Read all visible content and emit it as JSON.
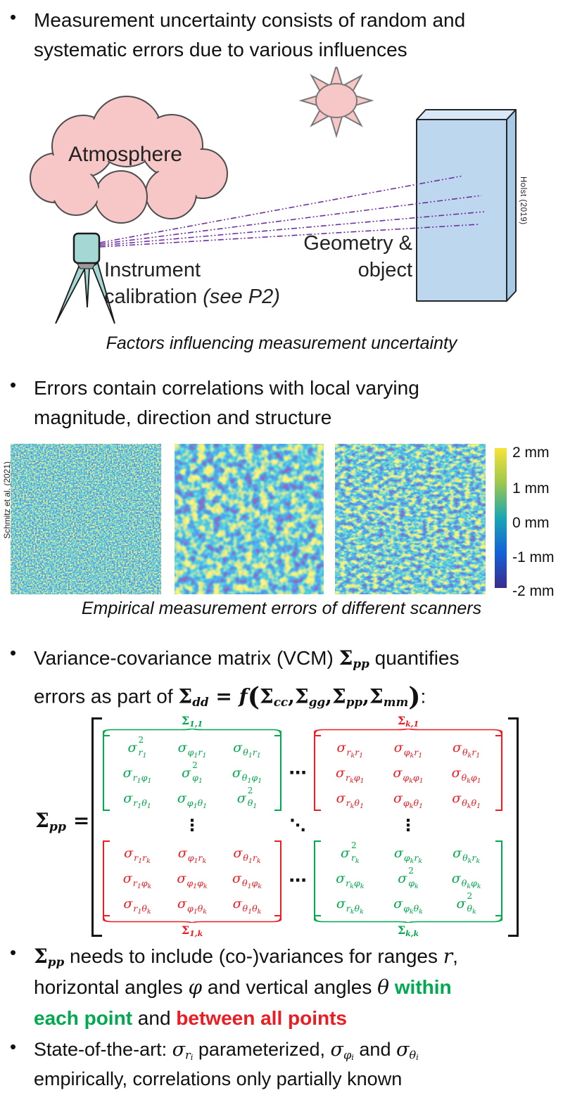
{
  "ui": {
    "bullet": "•"
  },
  "colors": {
    "green": "#00a84f",
    "red": "#ee1b23",
    "purple": "#7030a0",
    "pink": "#f7c6c6",
    "box_blue": "#bdd7ee",
    "scanner_teal": "#a5d8d4"
  },
  "bullet1": {
    "text": "Measurement uncertainty consists of random and\nsystematic errors due to various influences"
  },
  "diagram": {
    "atmosphere_label": "Atmosphere",
    "geometry_label": "Geometry &\nobject",
    "instrument_segments": [
      {
        "t": "Instrument\ncalibration "
      },
      {
        "t": "(see P2)",
        "c": "it"
      }
    ],
    "credit": "Holst (2019)",
    "caption": "Factors influencing measurement uncertainty"
  },
  "bullet2": {
    "text": "Errors contain correlations with local varying\nmagnitude, direction and structure"
  },
  "scans": {
    "credit": "Schmitz et al. (2021)",
    "caption": "Empirical measurement errors of different scanners",
    "colorbar_labels": [
      "2 mm",
      "1 mm",
      "0 mm",
      "-1 mm",
      "-2 mm"
    ]
  },
  "bullet3": {
    "segments": [
      {
        "t": "Variance-covariance matrix (VCM) "
      },
      {
        "t": "Σ",
        "c": "m b"
      },
      {
        "t": "pp",
        "c": "m b it sub"
      },
      {
        "t": " quantifies\nerrors as part of "
      },
      {
        "t": "Σ",
        "c": "m b"
      },
      {
        "t": "dd",
        "c": "m b it sub"
      },
      {
        "t": " = ",
        "c": "m b"
      },
      {
        "t": "f",
        "c": "m b it"
      },
      {
        "t": "(",
        "c": "m b big"
      },
      {
        "t": "Σ",
        "c": "m b"
      },
      {
        "t": "cc",
        "c": "m b it sub"
      },
      {
        "t": ",",
        "c": "m b"
      },
      {
        "t": "Σ",
        "c": "m b"
      },
      {
        "t": "gg",
        "c": "m b it sub"
      },
      {
        "t": ",",
        "c": "m b"
      },
      {
        "t": "Σ",
        "c": "m b"
      },
      {
        "t": "pp",
        "c": "m b it sub"
      },
      {
        "t": ",",
        "c": "m b"
      },
      {
        "t": "Σ",
        "c": "m b"
      },
      {
        "t": "mm",
        "c": "m b it sub"
      },
      {
        "t": ")",
        "c": "m b big"
      },
      {
        "t": ":"
      }
    ]
  },
  "matrix": {
    "sigma": "σ",
    "sigma_cap": "Σ",
    "lhs": {
      "base": "Σ",
      "sub": "pp",
      "eq": " ="
    },
    "dots": {
      "h": "⋯",
      "v": "⋮",
      "d": "⋱"
    },
    "blocks": [
      {
        "name": "1-1",
        "color": "green",
        "label_pos": "top",
        "label_sub": "1,1",
        "cells": [
          [
            "2|r1",
            "|φ1 r1",
            "|θ1 r1"
          ],
          [
            "|r1 φ1",
            "2|φ1",
            "|θ1 φ1"
          ],
          [
            "|r1 θ1",
            "|φ1 θ1",
            "2|θ1"
          ]
        ]
      },
      {
        "name": "k-1",
        "color": "red",
        "label_pos": "top",
        "label_sub": "k,1",
        "cells": [
          [
            "|rk r1",
            "|φk r1",
            "|θk r1"
          ],
          [
            "|rk φ1",
            "|φk φ1",
            "|θk φ1"
          ],
          [
            "|rk θ1",
            "|φk θ1",
            "|θk θ1"
          ]
        ]
      },
      {
        "name": "1-k",
        "color": "red",
        "label_pos": "bottom",
        "label_sub": "1,k",
        "cells": [
          [
            "|r1 rk",
            "|φ1 rk",
            "|θ1 rk"
          ],
          [
            "|r1 φk",
            "|φ1 φk",
            "|θ1 φk"
          ],
          [
            "|r1 θk",
            "|φ1 θk",
            "|θ1 θk"
          ]
        ]
      },
      {
        "name": "k-k",
        "color": "green",
        "label_pos": "bottom",
        "label_sub": "k,k",
        "cells": [
          [
            "2|rk",
            "|φk rk",
            "|θk rk"
          ],
          [
            "|rk φk",
            "2|φk",
            "|θk φk"
          ],
          [
            "|rk θk",
            "|φk θk",
            "2|θk"
          ]
        ]
      }
    ]
  },
  "bullet4": {
    "segments": [
      {
        "t": "Σ",
        "c": "m b"
      },
      {
        "t": "pp",
        "c": "m b it sub"
      },
      {
        "t": " needs to include (co-)variances for ranges "
      },
      {
        "t": "r",
        "c": "m it"
      },
      {
        "t": ",\nhorizontal angles "
      },
      {
        "t": "φ",
        "c": "m it"
      },
      {
        "t": " and vertical angles "
      },
      {
        "t": "θ",
        "c": "m it"
      },
      {
        "t": " "
      },
      {
        "t": "within\neach point",
        "c": "b green"
      },
      {
        "t": " and "
      },
      {
        "t": "between all points",
        "c": "b red"
      }
    ]
  },
  "bullet5": {
    "segments": [
      {
        "t": "State-of-the-art: "
      },
      {
        "t": "σ",
        "c": "m it"
      },
      {
        "t": "r",
        "c": "m it sub"
      },
      {
        "t": "i",
        "c": "m it sub2"
      },
      {
        "t": " parameterized, "
      },
      {
        "t": "σ",
        "c": "m it"
      },
      {
        "t": "φ",
        "c": "m it sub"
      },
      {
        "t": "i",
        "c": "m it sub2"
      },
      {
        "t": " and "
      },
      {
        "t": "σ",
        "c": "m it"
      },
      {
        "t": "θ",
        "c": "m it sub"
      },
      {
        "t": "i",
        "c": "m it sub2"
      },
      {
        "t": "\nempirically, correlations only partially known"
      }
    ]
  }
}
